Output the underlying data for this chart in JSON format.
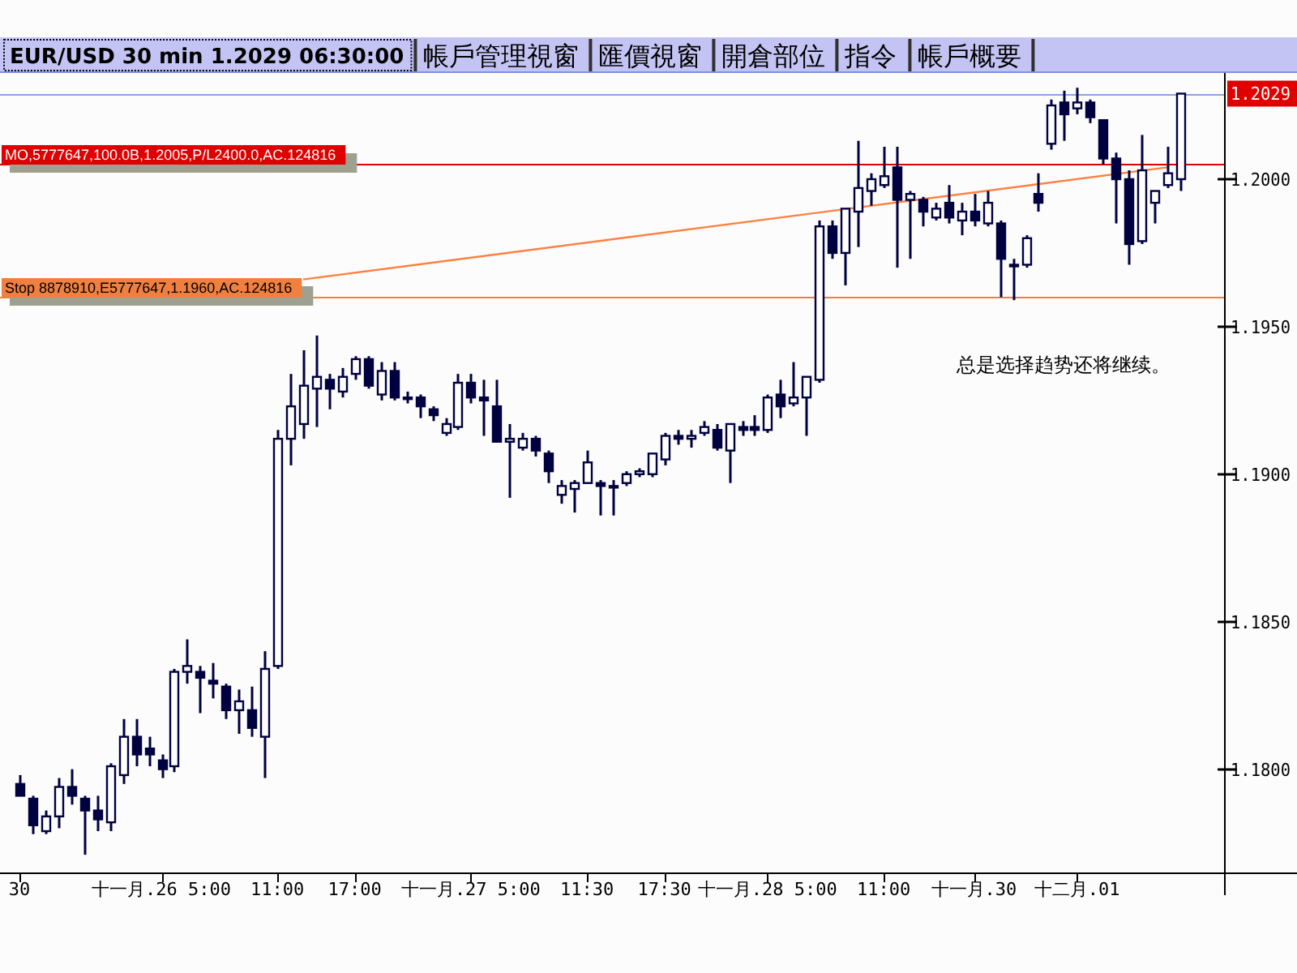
{
  "chart_data": {
    "type": "candlestick",
    "title": "EUR/USD 30 min 1.2029 06:30:00",
    "annotations": [
      "帳戶管理視窗",
      "匯價視窗",
      "開倉部位",
      "指令",
      "帳戶概要",
      "1.2029",
      "总是选择趋势还将继续。"
    ],
    "color": "#000040",
    "categories": [
      "30",
      null,
      null,
      null,
      null,
      null,
      null,
      null,
      null,
      null,
      null,
      "十一月.26 5:00",
      null,
      null,
      null,
      null,
      null,
      null,
      null,
      null,
      "11:00",
      null,
      null,
      null,
      null,
      null,
      "17:00",
      null,
      null,
      null,
      null,
      null,
      null,
      null,
      null,
      "十一月.27 5:00",
      null,
      null,
      null,
      null,
      null,
      null,
      null,
      null,
      "11:30",
      null,
      null,
      null,
      null,
      null,
      "17:30",
      null,
      null,
      null,
      null,
      null,
      null,
      null,
      "十一月.28 5:00",
      null,
      null,
      null,
      null,
      null,
      null,
      null,
      null,
      "11:00",
      null,
      null,
      null,
      null,
      null,
      null,
      "十一月.30",
      null,
      null,
      null,
      null,
      null,
      null,
      null,
      "十二月.01",
      null,
      null,
      null,
      null,
      null,
      null,
      null,
      null
    ],
    "ohlc": [
      [
        1.1795,
        1.1798,
        1.1791,
        1.1791
      ],
      [
        1.179,
        1.1791,
        1.1778,
        1.1781
      ],
      [
        1.1779,
        1.1786,
        1.1778,
        1.1784
      ],
      [
        1.1784,
        1.1797,
        1.178,
        1.1794
      ],
      [
        1.1794,
        1.18,
        1.1788,
        1.1791
      ],
      [
        1.179,
        1.1791,
        1.1771,
        1.1786
      ],
      [
        1.1786,
        1.1791,
        1.1779,
        1.1783
      ],
      [
        1.1782,
        1.1802,
        1.1779,
        1.1801
      ],
      [
        1.1798,
        1.1817,
        1.1795,
        1.1811
      ],
      [
        1.1811,
        1.1817,
        1.1801,
        1.1805
      ],
      [
        1.1807,
        1.1811,
        1.1801,
        1.1805
      ],
      [
        1.1803,
        1.1805,
        1.1797,
        1.18
      ],
      [
        1.1801,
        1.1834,
        1.1799,
        1.1833
      ],
      [
        1.1833,
        1.1844,
        1.1829,
        1.1835
      ],
      [
        1.1833,
        1.1835,
        1.1819,
        1.1831
      ],
      [
        1.183,
        1.1836,
        1.1824,
        1.1829
      ],
      [
        1.1828,
        1.1829,
        1.1817,
        1.182
      ],
      [
        1.182,
        1.1827,
        1.1812,
        1.1823
      ],
      [
        1.182,
        1.1828,
        1.1811,
        1.1814
      ],
      [
        1.1811,
        1.184,
        1.1797,
        1.1834
      ],
      [
        1.1835,
        1.1915,
        1.1834,
        1.1912
      ],
      [
        1.1912,
        1.1934,
        1.1903,
        1.1923
      ],
      [
        1.1917,
        1.1942,
        1.1912,
        1.193
      ],
      [
        1.1929,
        1.1947,
        1.1916,
        1.1933
      ],
      [
        1.1932,
        1.1934,
        1.1922,
        1.1929
      ],
      [
        1.1928,
        1.1936,
        1.1926,
        1.1933
      ],
      [
        1.1934,
        1.194,
        1.1932,
        1.1939
      ],
      [
        1.1939,
        1.194,
        1.1929,
        1.193
      ],
      [
        1.1927,
        1.1938,
        1.1925,
        1.1935
      ],
      [
        1.1935,
        1.1938,
        1.1925,
        1.1926
      ],
      [
        1.1926,
        1.1928,
        1.1924,
        1.1926
      ],
      [
        1.1926,
        1.1927,
        1.1919,
        1.1923
      ],
      [
        1.1922,
        1.1923,
        1.1918,
        1.192
      ],
      [
        1.1914,
        1.1919,
        1.1913,
        1.1917
      ],
      [
        1.1916,
        1.1934,
        1.1915,
        1.1931
      ],
      [
        1.1931,
        1.1934,
        1.1924,
        1.1926
      ],
      [
        1.1926,
        1.1932,
        1.1913,
        1.1925
      ],
      [
        1.1923,
        1.1932,
        1.1911,
        1.1911
      ],
      [
        1.1911,
        1.1917,
        1.1892,
        1.1912
      ],
      [
        1.1909,
        1.1914,
        1.1908,
        1.1912
      ],
      [
        1.1912,
        1.1913,
        1.1906,
        1.1908
      ],
      [
        1.1907,
        1.1908,
        1.1897,
        1.1901
      ],
      [
        1.1893,
        1.1898,
        1.189,
        1.1896
      ],
      [
        1.1895,
        1.1898,
        1.1887,
        1.1897
      ],
      [
        1.1897,
        1.1908,
        1.1897,
        1.1904
      ],
      [
        1.1897,
        1.1898,
        1.1886,
        1.1896
      ],
      [
        1.1896,
        1.1898,
        1.1886,
        1.1896
      ],
      [
        1.1897,
        1.1901,
        1.1896,
        1.19
      ],
      [
        1.19,
        1.1902,
        1.1899,
        1.1901
      ],
      [
        1.19,
        1.1907,
        1.1899,
        1.1907
      ],
      [
        1.1905,
        1.1914,
        1.1903,
        1.1913
      ],
      [
        1.1913,
        1.1915,
        1.191,
        1.1912
      ],
      [
        1.1912,
        1.1915,
        1.1909,
        1.1913
      ],
      [
        1.1914,
        1.1918,
        1.1913,
        1.1916
      ],
      [
        1.1915,
        1.1917,
        1.1908,
        1.1909
      ],
      [
        1.1908,
        1.1917,
        1.1897,
        1.1917
      ],
      [
        1.1916,
        1.1918,
        1.1913,
        1.1915
      ],
      [
        1.1916,
        1.192,
        1.1913,
        1.1915
      ],
      [
        1.1915,
        1.1927,
        1.1914,
        1.1926
      ],
      [
        1.1927,
        1.1932,
        1.1919,
        1.1923
      ],
      [
        1.1924,
        1.1938,
        1.1923,
        1.1926
      ],
      [
        1.1926,
        1.1933,
        1.1913,
        1.1933
      ],
      [
        1.1932,
        1.1986,
        1.1931,
        1.1984
      ],
      [
        1.1984,
        1.1986,
        1.1973,
        1.1975
      ],
      [
        1.1975,
        1.199,
        1.1964,
        1.199
      ],
      [
        1.1989,
        1.2013,
        1.1977,
        1.1997
      ],
      [
        1.1996,
        1.2002,
        1.1991,
        1.2
      ],
      [
        1.1998,
        1.2011,
        1.1997,
        1.2001
      ],
      [
        1.2004,
        1.2011,
        1.197,
        1.1993
      ],
      [
        1.1993,
        1.1996,
        1.1973,
        1.1995
      ],
      [
        1.1993,
        1.1994,
        1.1984,
        1.1989
      ],
      [
        1.1987,
        1.1992,
        1.1986,
        1.199
      ],
      [
        1.1992,
        1.1998,
        1.1985,
        1.1987
      ],
      [
        1.1986,
        1.1992,
        1.1981,
        1.1989
      ],
      [
        1.1989,
        1.1995,
        1.1984,
        1.1986
      ],
      [
        1.1985,
        1.1996,
        1.1984,
        1.1992
      ],
      [
        1.1985,
        1.1986,
        1.196,
        1.1973
      ],
      [
        1.1971,
        1.1973,
        1.1959,
        1.1971
      ],
      [
        1.1971,
        1.1981,
        1.197,
        1.198
      ],
      [
        1.1995,
        1.2002,
        1.1989,
        1.1992
      ],
      [
        1.2012,
        1.2027,
        1.201,
        1.2025
      ],
      [
        1.2026,
        1.203,
        1.2013,
        1.2022
      ],
      [
        1.2024,
        1.2031,
        1.2022,
        1.2026
      ],
      [
        1.2026,
        1.2027,
        1.2019,
        1.2021
      ],
      [
        1.202,
        1.202,
        1.2005,
        1.2007
      ],
      [
        1.2007,
        1.2009,
        1.1985,
        1.2
      ],
      [
        1.2,
        1.2003,
        1.1971,
        1.1978
      ],
      [
        1.1979,
        1.2015,
        1.1978,
        1.2003
      ],
      [
        1.1992,
        1.1996,
        1.1985,
        1.1996
      ],
      [
        1.1998,
        1.2011,
        1.1997,
        1.2002
      ],
      [
        1.2,
        1.2029,
        1.1996,
        1.2029
      ]
    ],
    "series": [
      {
        "type": "line",
        "color": "#ff8040",
        "values": [
          null,
          null,
          null,
          null,
          null,
          null,
          null,
          null,
          null,
          null,
          null,
          null,
          null,
          null,
          null,
          null,
          null,
          null,
          null,
          null,
          null,
          null,
          1.1966,
          null,
          null,
          null,
          null,
          null,
          null,
          null,
          null,
          null,
          null,
          null,
          null,
          null,
          null,
          null,
          null,
          null,
          null,
          null,
          null,
          null,
          null,
          null,
          null,
          null,
          null,
          null,
          null,
          null,
          null,
          null,
          null,
          null,
          null,
          null,
          null,
          null,
          null,
          null,
          null,
          null,
          null,
          null,
          null,
          null,
          null,
          null,
          null,
          null,
          null,
          null,
          null,
          null,
          null,
          null,
          null,
          null,
          null,
          null,
          null,
          null,
          null,
          null,
          null,
          null,
          null,
          1.2004,
          null
        ]
      }
    ],
    "ref_lines": [
      {
        "axis": "y",
        "value": 1.2005,
        "label": "MO,5777647,100.0B,1.2005,P/L2400.0,AC.124816",
        "color": "#e00000"
      },
      {
        "axis": "y",
        "value": 1.196,
        "label": "Stop 8878910,E5777647,1.1960,AC.124816",
        "color": "#f08040"
      },
      {
        "axis": "y",
        "value": 1.2029,
        "color": "#90a0e0"
      }
    ],
    "ylim": [
      1.1765,
      1.2036
    ],
    "yticks": [
      {
        "value": 1.18,
        "label": "1.1800"
      },
      {
        "value": 1.185,
        "label": "1.1850"
      },
      {
        "value": 1.19,
        "label": "1.1900"
      },
      {
        "value": 1.195,
        "label": "1.1950"
      },
      {
        "value": 1.2,
        "label": "1.2000"
      }
    ]
  }
}
